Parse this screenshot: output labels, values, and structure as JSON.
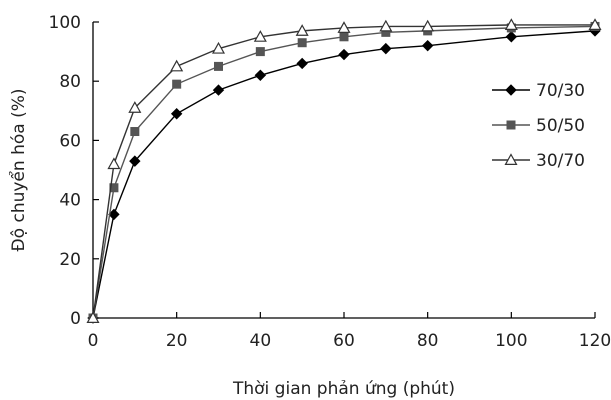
{
  "chart_data": {
    "type": "line",
    "title": "",
    "xlabel": "Thời gian phản ứng (phút)",
    "ylabel": "Độ chuyển hóa (%)",
    "xlim": [
      0,
      120
    ],
    "ylim": [
      0,
      100
    ],
    "x_ticks": [
      0,
      20,
      40,
      60,
      80,
      100,
      120
    ],
    "y_ticks": [
      0,
      20,
      40,
      60,
      80,
      100
    ],
    "grid": false,
    "legend_position": "right",
    "x": [
      0,
      5,
      10,
      20,
      30,
      40,
      50,
      60,
      70,
      80,
      100,
      120
    ],
    "series": [
      {
        "name": "70/30",
        "marker": "diamond",
        "color": "#000000",
        "values": [
          0,
          35,
          53,
          69,
          77,
          82,
          86,
          89,
          91,
          92,
          95,
          97
        ]
      },
      {
        "name": "50/50",
        "marker": "square",
        "color": "#555555",
        "values": [
          0,
          44,
          63,
          79,
          85,
          90,
          93,
          95,
          96.5,
          97,
          98,
          98.5
        ]
      },
      {
        "name": "30/70",
        "marker": "triangle-open",
        "color": "#333333",
        "values": [
          0,
          52,
          71,
          85,
          91,
          95,
          97,
          98,
          98.5,
          98.5,
          99,
          99
        ]
      }
    ]
  }
}
